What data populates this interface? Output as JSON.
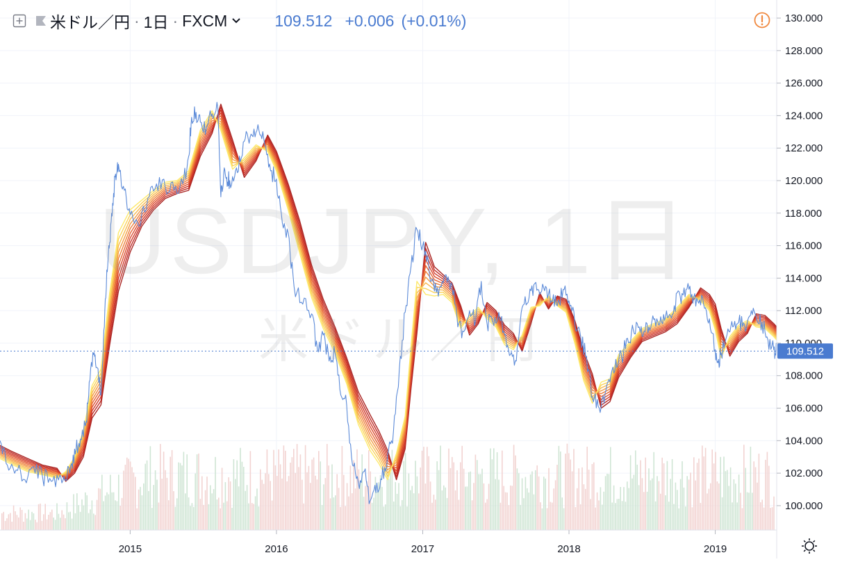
{
  "header": {
    "symbol": "米ドル／円",
    "interval": "1日",
    "exchange": "FXCM",
    "price": "109.512",
    "change": "+0.006",
    "change_percent": "(+0.01%)"
  },
  "watermark": {
    "main": "USDJPY, 1日",
    "sub": "米ドル／円"
  },
  "icons": {
    "expand": "plus-box-icon",
    "flag": "flag-icon",
    "chevron": "chevron-down-icon",
    "warning": "warning-circle-icon",
    "settings": "sun-gear-icon"
  },
  "colors": {
    "price_line": "#5b8ad8",
    "ema_ribbon": [
      "#fde96b",
      "#fbd35a",
      "#f8b94d",
      "#f49c42",
      "#ee7f3a",
      "#e66333",
      "#dc4a2d",
      "#cf3728",
      "#bf2b25",
      "#a92422"
    ],
    "last_price_label": "#4a7bd0",
    "volume_up": "#cfe5d4",
    "volume_down": "#f2d3d1",
    "warning": "#f0883e"
  },
  "chart_data": {
    "type": "line",
    "title": "",
    "xlabel": "",
    "ylabel": "",
    "ylim": [
      98.5,
      130.6
    ],
    "xlim": [
      2014.11,
      2019.42
    ],
    "yticks": [
      "130.000",
      "128.000",
      "126.000",
      "124.000",
      "122.000",
      "120.000",
      "118.000",
      "116.000",
      "114.000",
      "112.000",
      "110.000",
      "108.000",
      "106.000",
      "104.000",
      "102.000",
      "100.000"
    ],
    "xticks": [
      "2015",
      "2016",
      "2017",
      "2018",
      "2019"
    ],
    "last_price_label": "109.512",
    "last_price": 109.512,
    "grid": true,
    "series": [
      {
        "kind": "price",
        "x": [
          2014.11,
          2014.16,
          2014.22,
          2014.28,
          2014.34,
          2014.4,
          2014.46,
          2014.52,
          2014.56,
          2014.6,
          2014.63,
          2014.66,
          2014.7,
          2014.72,
          2014.75,
          2014.77,
          2014.8,
          2014.82,
          2014.84,
          2014.86,
          2014.88,
          2014.9,
          2014.92,
          2014.96,
          2015.0,
          2015.06,
          2015.12,
          2015.18,
          2015.24,
          2015.3,
          2015.36,
          2015.4,
          2015.42,
          2015.45,
          2015.48,
          2015.52,
          2015.56,
          2015.6,
          2015.62,
          2015.64,
          2015.66,
          2015.68,
          2015.72,
          2015.76,
          2015.8,
          2015.84,
          2015.88,
          2015.92,
          2015.96,
          2016.0,
          2016.04,
          2016.08,
          2016.12,
          2016.18,
          2016.24,
          2016.28,
          2016.32,
          2016.36,
          2016.4,
          2016.44,
          2016.48,
          2016.52,
          2016.56,
          2016.6,
          2016.64,
          2016.68,
          2016.72,
          2016.76,
          2016.8,
          2016.84,
          2016.88,
          2016.92,
          2016.96,
          2017.0,
          2017.04,
          2017.08,
          2017.12,
          2017.16,
          2017.2,
          2017.24,
          2017.28,
          2017.32,
          2017.36,
          2017.4,
          2017.44,
          2017.48,
          2017.52,
          2017.56,
          2017.6,
          2017.64,
          2017.68,
          2017.72,
          2017.76,
          2017.8,
          2017.84,
          2017.88,
          2017.92,
          2017.96,
          2018.0,
          2018.04,
          2018.08,
          2018.12,
          2018.16,
          2018.2,
          2018.24,
          2018.28,
          2018.32,
          2018.36,
          2018.4,
          2018.44,
          2018.48,
          2018.52,
          2018.56,
          2018.6,
          2018.64,
          2018.68,
          2018.72,
          2018.76,
          2018.8,
          2018.84,
          2018.88,
          2018.92,
          2018.96,
          2019.0,
          2019.02,
          2019.04,
          2019.08,
          2019.12,
          2019.16,
          2019.2,
          2019.24,
          2019.28,
          2019.32,
          2019.36,
          2019.4,
          2019.42
        ],
        "y": [
          104.0,
          102.5,
          102.2,
          101.6,
          102.4,
          101.8,
          101.5,
          101.9,
          101.6,
          102.6,
          103.5,
          104.1,
          105.2,
          107.6,
          109.3,
          108.5,
          106.8,
          110.8,
          114.5,
          116.2,
          118.6,
          120.4,
          121.0,
          119.4,
          117.9,
          117.2,
          118.9,
          119.8,
          119.6,
          119.4,
          119.8,
          121.5,
          123.9,
          124.2,
          123.6,
          123.2,
          124.1,
          124.4,
          119.0,
          120.5,
          120.2,
          120.0,
          120.6,
          121.4,
          122.9,
          122.7,
          123.1,
          122.2,
          120.6,
          120.1,
          117.4,
          116.8,
          113.5,
          112.4,
          111.8,
          109.6,
          110.5,
          108.9,
          109.4,
          106.8,
          106.2,
          102.5,
          101.4,
          102.1,
          100.3,
          100.8,
          101.6,
          103.1,
          104.6,
          108.4,
          111.9,
          114.7,
          117.0,
          116.0,
          114.9,
          113.2,
          113.5,
          114.2,
          113.6,
          111.0,
          110.7,
          112.0,
          111.3,
          113.8,
          111.2,
          111.3,
          111.9,
          110.5,
          109.3,
          108.9,
          112.2,
          112.5,
          113.6,
          113.0,
          113.5,
          112.6,
          112.3,
          113.3,
          112.6,
          111.2,
          110.4,
          109.2,
          106.7,
          106.1,
          106.3,
          107.6,
          109.0,
          109.1,
          110.3,
          110.8,
          111.0,
          110.7,
          111.0,
          111.5,
          111.2,
          111.6,
          112.3,
          112.9,
          113.3,
          113.0,
          112.6,
          112.4,
          111.5,
          109.6,
          108.8,
          109.4,
          110.5,
          111.0,
          111.3,
          111.1,
          111.7,
          111.6,
          111.3,
          110.2,
          109.6,
          109.5
        ],
        "legend_shown": false
      },
      {
        "kind": "ema_ribbon",
        "x": [
          2014.11,
          2014.2,
          2014.3,
          2014.4,
          2014.5,
          2014.56,
          2014.62,
          2014.68,
          2014.74,
          2014.8,
          2014.86,
          2014.92,
          2015.0,
          2015.08,
          2015.16,
          2015.24,
          2015.32,
          2015.4,
          2015.48,
          2015.56,
          2015.62,
          2015.7,
          2015.78,
          2015.86,
          2015.94,
          2016.0,
          2016.08,
          2016.16,
          2016.24,
          2016.32,
          2016.4,
          2016.48,
          2016.56,
          2016.64,
          2016.7,
          2016.76,
          2016.82,
          2016.88,
          2016.92,
          2016.96,
          2017.02,
          2017.08,
          2017.14,
          2017.2,
          2017.26,
          2017.32,
          2017.38,
          2017.44,
          2017.5,
          2017.56,
          2017.62,
          2017.68,
          2017.74,
          2017.8,
          2017.86,
          2017.92,
          2017.98,
          2018.04,
          2018.1,
          2018.16,
          2018.22,
          2018.28,
          2018.34,
          2018.42,
          2018.5,
          2018.58,
          2018.66,
          2018.74,
          2018.82,
          2018.9,
          2018.96,
          2019.0,
          2019.04,
          2019.1,
          2019.16,
          2019.22,
          2019.28,
          2019.34,
          2019.4,
          2019.42
        ],
        "center": [
          103.3,
          102.9,
          102.5,
          102.2,
          102.0,
          101.8,
          102.5,
          103.8,
          106.4,
          107.3,
          111.5,
          115.0,
          116.9,
          118.0,
          118.8,
          119.4,
          119.6,
          120.0,
          122.3,
          123.6,
          123.9,
          121.6,
          120.8,
          121.7,
          122.3,
          121.2,
          119.0,
          116.5,
          113.8,
          111.8,
          110.2,
          108.3,
          106.0,
          104.5,
          103.6,
          102.5,
          102.4,
          104.5,
          108.5,
          112.2,
          114.6,
          113.8,
          113.6,
          113.1,
          111.6,
          111.1,
          111.7,
          112.0,
          111.5,
          110.5,
          110.1,
          110.0,
          111.7,
          112.7,
          112.5,
          112.6,
          112.3,
          110.7,
          108.6,
          107.2,
          106.8,
          107.1,
          108.6,
          109.6,
          110.5,
          110.8,
          111.1,
          111.7,
          112.6,
          113.0,
          112.5,
          111.6,
          110.0,
          109.8,
          110.6,
          111.0,
          111.4,
          111.3,
          110.8,
          110.6
        ],
        "spread": [
          0.4,
          0.4,
          0.4,
          0.3,
          0.3,
          0.3,
          0.5,
          0.8,
          1.0,
          1.1,
          1.6,
          1.8,
          1.3,
          0.8,
          0.6,
          0.5,
          0.4,
          0.6,
          0.8,
          0.7,
          0.8,
          0.9,
          0.6,
          0.5,
          0.5,
          0.6,
          0.8,
          1.0,
          1.0,
          0.9,
          0.8,
          0.8,
          1.0,
          1.1,
          1.0,
          0.9,
          0.8,
          1.0,
          1.3,
          1.6,
          1.6,
          0.9,
          0.6,
          0.6,
          0.7,
          0.6,
          0.5,
          0.5,
          0.5,
          0.6,
          0.5,
          0.5,
          0.5,
          0.4,
          0.4,
          0.3,
          0.4,
          0.7,
          0.9,
          0.9,
          0.8,
          0.7,
          0.7,
          0.5,
          0.4,
          0.4,
          0.4,
          0.5,
          0.4,
          0.4,
          0.5,
          0.8,
          0.9,
          0.6,
          0.5,
          0.4,
          0.4,
          0.4,
          0.4,
          0.4
        ],
        "line_count": 10,
        "legend_shown": false
      },
      {
        "kind": "volume",
        "type": "bar",
        "relative_height_max": 1.0,
        "legend_shown": false
      }
    ]
  }
}
